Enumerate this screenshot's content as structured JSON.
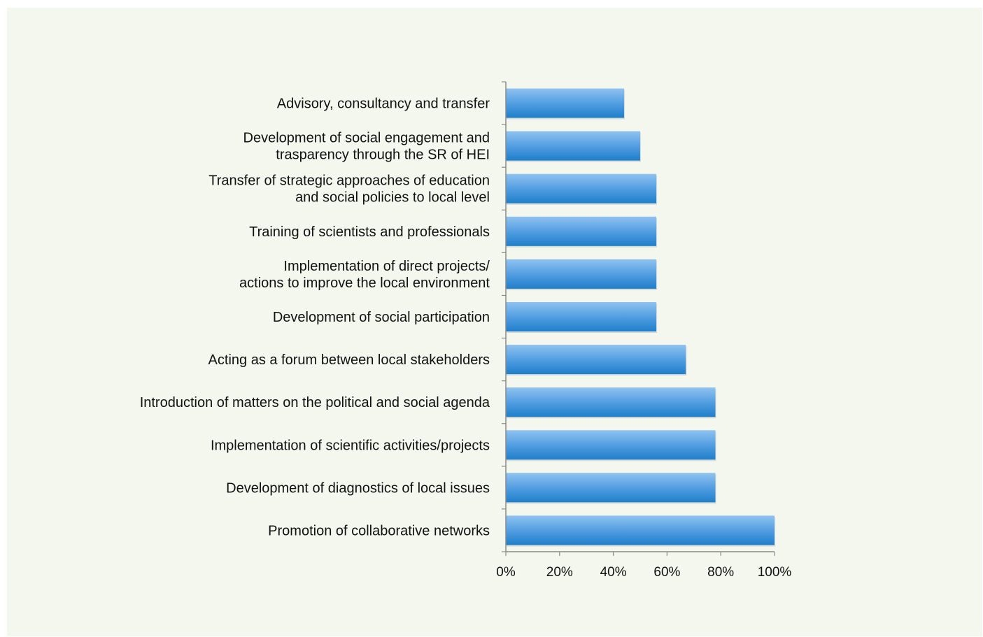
{
  "chart_data": {
    "type": "bar",
    "orientation": "horizontal",
    "title": "",
    "xlabel": "",
    "ylabel": "",
    "categories": [
      "Advisory, consultancy and transfer",
      "Development of social engagement and trasparency through the SR of HEI",
      "Transfer of strategic approaches of education and social policies to local level",
      "Training of scientists and professionals",
      "Implementation of direct projects/ actions to improve the local environment",
      "Development of social participation",
      "Acting as a forum between local stakeholders",
      "Introduction of matters on the political and social agenda",
      "Implementation of scientific activities/projects",
      "Development of diagnostics of local issues",
      "Promotion of collaborative networks"
    ],
    "category_lines": [
      [
        "Advisory, consultancy and transfer"
      ],
      [
        "Development of social engagement and",
        "trasparency through the SR of HEI"
      ],
      [
        "Transfer of strategic approaches of education",
        "and social policies to local level"
      ],
      [
        "Training of scientists and professionals"
      ],
      [
        "Implementation of direct projects/",
        "actions to improve the local environment"
      ],
      [
        "Development of social participation"
      ],
      [
        "Acting as a forum between local stakeholders"
      ],
      [
        "Introduction of matters on the political and social agenda"
      ],
      [
        "Implementation of scientific activities/projects"
      ],
      [
        "Development of diagnostics of local issues"
      ],
      [
        "Promotion of collaborative networks"
      ]
    ],
    "values": [
      44,
      50,
      56,
      56,
      56,
      56,
      67,
      78,
      78,
      78,
      100
    ],
    "xlim": [
      0,
      100
    ],
    "xticks": [
      0,
      20,
      40,
      60,
      80,
      100
    ],
    "xtick_labels": [
      "0%",
      "20%",
      "40%",
      "60%",
      "80%",
      "100%"
    ],
    "grid": false,
    "legend": "none",
    "bar_color_light": "#8fc3f0",
    "bar_color_dark": "#1f7fc9",
    "background_color": "#f3f7ee"
  }
}
